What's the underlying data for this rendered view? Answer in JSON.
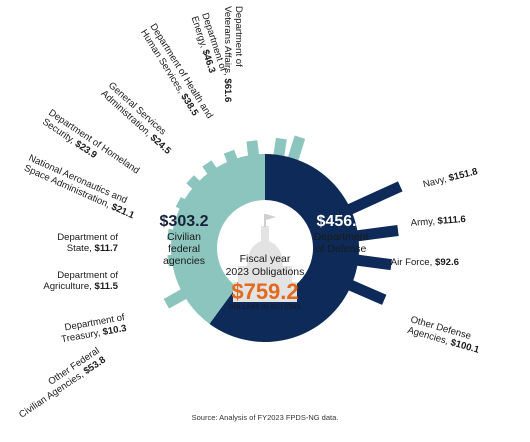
{
  "chart_data": {
    "type": "pie",
    "title": "",
    "center": {
      "line1": "Fiscal year",
      "line2": "2023 Obligations",
      "total": "$759.2",
      "unit": "DOLLARS IN BILLIONS"
    },
    "segments": [
      {
        "name_lines": [
          "Civilian",
          "federal",
          "agencies"
        ],
        "value_label": "$303.2",
        "value": 303.2,
        "color": "#8cc5bd"
      },
      {
        "name_lines": [
          "Department",
          "of Defense"
        ],
        "value_label": "$456.0",
        "value": 456.0,
        "color": "#0d2a58"
      }
    ],
    "civilian_bars": [
      {
        "name_lines": [
          "Department of",
          "Veterans Affairs,"
        ],
        "value_label": "$61.6",
        "value": 61.6
      },
      {
        "name_lines": [
          "Department of",
          "Energy,"
        ],
        "value_label": "$46.3",
        "value": 46.3
      },
      {
        "name_lines": [
          "Department of Health and",
          "Human Services,"
        ],
        "value_label": "$38.5",
        "value": 38.5
      },
      {
        "name_lines": [
          "General Services",
          "Administration,"
        ],
        "value_label": "$24.5",
        "value": 24.5
      },
      {
        "name_lines": [
          "Department of Homeland",
          "Security,"
        ],
        "value_label": "$23.9",
        "value": 23.9
      },
      {
        "name_lines": [
          "National Aeronautics and",
          "Space Administration,"
        ],
        "value_label": "$21.1",
        "value": 21.1
      },
      {
        "name_lines": [
          "Department of",
          "State,"
        ],
        "value_label": "$11.7",
        "value": 11.7
      },
      {
        "name_lines": [
          "Department of",
          "Agriculture,"
        ],
        "value_label": "$11.5",
        "value": 11.5
      },
      {
        "name_lines": [
          "Department of",
          "Treasury,"
        ],
        "value_label": "$10.3",
        "value": 10.3
      },
      {
        "name_lines": [
          "Other Federal",
          "Civilian Agencies,"
        ],
        "value_label": "$53.8",
        "value": 53.8
      }
    ],
    "defense_bars": [
      {
        "name_lines": [
          "Navy,"
        ],
        "value_label": "$151.8",
        "value": 151.8
      },
      {
        "name_lines": [
          "Army,"
        ],
        "value_label": "$111.6",
        "value": 111.6
      },
      {
        "name_lines": [
          "Air Force,"
        ],
        "value_label": "$92.6",
        "value": 92.6
      },
      {
        "name_lines": [
          "Other Defense",
          "Agencies,"
        ],
        "value_label": "$100.1",
        "value": 100.1
      }
    ],
    "colors": {
      "civilian": "#8cc5bd",
      "defense": "#0d2a58",
      "total": "#e06a1e",
      "building": "#e3e3e3"
    },
    "source": "Source: Analysis of FY2023 FPDS-NG data."
  }
}
